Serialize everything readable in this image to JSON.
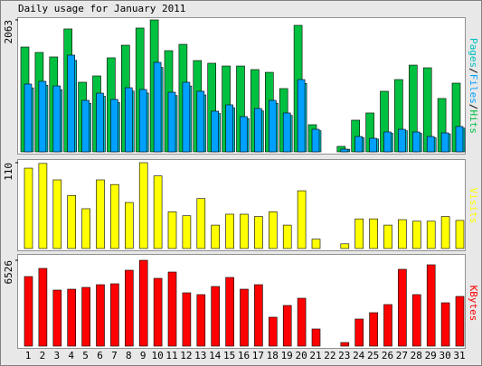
{
  "chart_data": [
    {
      "type": "bar",
      "title": "Daily usage for January 2011",
      "ylim": [
        0,
        2063
      ],
      "yticks": [
        2063
      ],
      "legend_separator": "/",
      "series": [
        {
          "name": "Pages",
          "color": "#00c0c0",
          "values": [
            1000,
            1040,
            970,
            1430,
            760,
            870,
            770,
            950,
            920,
            1320,
            880,
            1030,
            890,
            600,
            690,
            520,
            640,
            760,
            570,
            1070,
            330,
            0,
            40,
            220,
            200,
            290,
            330,
            290,
            220,
            280,
            370
          ]
        },
        {
          "name": "Files",
          "color": "#00a0ff",
          "values": [
            1060,
            1102,
            1031,
            1512,
            805,
            918,
            820,
            1003,
            975,
            1399,
            932,
            1088,
            947,
            636,
            735,
            551,
            678,
            805,
            608,
            1130,
            353,
            0,
            42,
            240,
            212,
            311,
            353,
            311,
            240,
            297,
            396
          ]
        },
        {
          "name": "Hits",
          "color": "#00c040",
          "values": [
            1639,
            1554,
            1484,
            1922,
            1088,
            1187,
            1470,
            1667,
            1936,
            2063,
            1582,
            1681,
            1427,
            1385,
            1342,
            1342,
            1286,
            1243,
            989,
            1978,
            424,
            0,
            85,
            495,
            608,
            947,
            1130,
            1356,
            1314,
            834,
            1074
          ]
        }
      ]
    },
    {
      "type": "bar",
      "ylim": [
        0,
        110
      ],
      "yticks": [
        110
      ],
      "series": [
        {
          "name": "Visits",
          "color": "#ffff00",
          "values": [
            103,
            109,
            88,
            68,
            51,
            88,
            82,
            59,
            110,
            93,
            47,
            42,
            64,
            30,
            44,
            44,
            41,
            47,
            30,
            74,
            12,
            0,
            6,
            38,
            38,
            30,
            37,
            35,
            35,
            41,
            36
          ]
        }
      ]
    },
    {
      "type": "bar",
      "ylim": [
        0,
        6526
      ],
      "yticks": [
        6526
      ],
      "categories": [
        "1",
        "2",
        "3",
        "4",
        "5",
        "6",
        "7",
        "8",
        "9",
        "10",
        "11",
        "12",
        "13",
        "14",
        "15",
        "16",
        "17",
        "18",
        "19",
        "20",
        "21",
        "22",
        "23",
        "24",
        "25",
        "26",
        "27",
        "28",
        "29",
        "30",
        "31"
      ],
      "category_colors": [
        "#00a000",
        "#00a000",
        "#000000",
        "#000000",
        "#000000",
        "#000000",
        "#000000",
        "#00a000",
        "#00a000",
        "#000000",
        "#000000",
        "#000000",
        "#000000",
        "#000000",
        "#00a000",
        "#00a000",
        "#000000",
        "#000000",
        "#000000",
        "#000000",
        "#000000",
        "#00a000",
        "#00a000",
        "#000000",
        "#000000",
        "#000000",
        "#000000",
        "#000000",
        "#00a000",
        "#00a000",
        "#000000"
      ],
      "series": [
        {
          "name": "KBytes",
          "color": "#ff0000",
          "values": [
            5290,
            5908,
            4259,
            4328,
            4465,
            4671,
            4740,
            5770,
            6526,
            5152,
            5633,
            4053,
            3916,
            4534,
            5221,
            4328,
            4671,
            2198,
            3091,
            3641,
            1305,
            0,
            275,
            2061,
            2542,
            3160,
            5839,
            3916,
            6183,
            3297,
            3778
          ]
        }
      ]
    }
  ]
}
